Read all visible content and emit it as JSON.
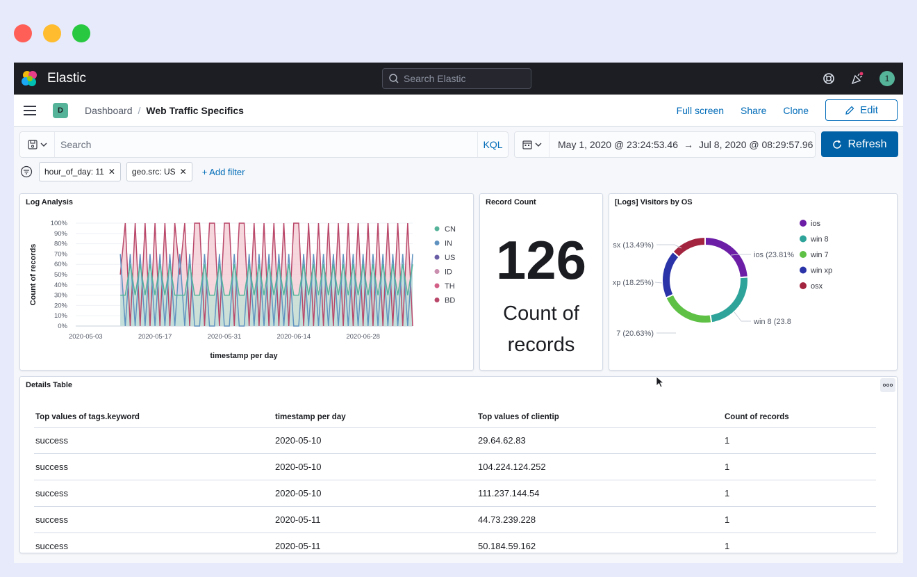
{
  "window": {
    "controls": {
      "close_color": "#ff5f57",
      "minimize_color": "#febc2e",
      "maximize_color": "#28c840"
    }
  },
  "header": {
    "brand": "Elastic",
    "search_placeholder": "Search Elastic",
    "avatar_initial": "1"
  },
  "subbar": {
    "space_badge": "D",
    "breadcrumbs": [
      "Dashboard",
      "Web Traffic Specifics"
    ],
    "actions": {
      "full_screen": "Full screen",
      "share": "Share",
      "clone": "Clone",
      "edit": "Edit"
    }
  },
  "query": {
    "search_placeholder": "Search",
    "language": "KQL",
    "date_start": "May 1, 2020 @ 23:24:53.46",
    "date_arrow": "→",
    "date_end": "Jul 8, 2020 @ 08:29:57.96",
    "refresh": "Refresh"
  },
  "filters": {
    "pills": [
      "hour_of_day: 11",
      "geo.src: US"
    ],
    "add_filter": "+ Add filter"
  },
  "panels": {
    "log_analysis": {
      "title": "Log Analysis"
    },
    "record_count": {
      "title": "Record Count",
      "value": "126",
      "caption_line1": "Count of",
      "caption_line2": "records"
    },
    "visitors_os": {
      "title": "[Logs] Visitors by OS"
    },
    "details_table": {
      "title": "Details Table",
      "columns": [
        "Top values of tags.keyword",
        "timestamp per day",
        "Top values of clientip",
        "Count of records"
      ],
      "rows": [
        [
          "success",
          "2020-05-10",
          "29.64.62.83",
          "1"
        ],
        [
          "success",
          "2020-05-10",
          "104.224.124.252",
          "1"
        ],
        [
          "success",
          "2020-05-10",
          "111.237.144.54",
          "1"
        ],
        [
          "success",
          "2020-05-11",
          "44.73.239.228",
          "1"
        ],
        [
          "success",
          "2020-05-11",
          "50.184.59.162",
          "1"
        ]
      ]
    }
  },
  "chart_data": [
    {
      "type": "area",
      "title": "Log Analysis",
      "xlabel": "timestamp per day",
      "ylabel": "Count of records",
      "yticks": [
        "100%",
        "90%",
        "80%",
        "70%",
        "60%",
        "50%",
        "40%",
        "30%",
        "20%",
        "10%",
        "0%"
      ],
      "xticks": [
        "2020-05-03",
        "2020-05-17",
        "2020-05-31",
        "2020-06-14",
        "2020-06-28"
      ],
      "ylim": [
        0,
        100
      ],
      "legend_position": "right",
      "series": [
        {
          "name": "CN",
          "color": "#54b399"
        },
        {
          "name": "IN",
          "color": "#6092c0"
        },
        {
          "name": "US",
          "color": "#6a5fa6"
        },
        {
          "name": "ID",
          "color": "#ca8eae"
        },
        {
          "name": "TH",
          "color": "#d36086"
        },
        {
          "name": "BD",
          "color": "#b9476a"
        }
      ],
      "x": [
        "2020-05-01",
        "2020-05-02",
        "2020-05-03",
        "2020-05-04",
        "2020-05-05",
        "2020-05-06",
        "2020-05-07",
        "2020-05-08",
        "2020-05-09",
        "2020-05-10",
        "2020-05-11",
        "2020-05-12",
        "2020-05-13",
        "2020-05-14",
        "2020-05-15",
        "2020-05-16",
        "2020-05-17",
        "2020-05-18",
        "2020-05-19",
        "2020-05-20",
        "2020-05-21",
        "2020-05-22",
        "2020-05-23",
        "2020-05-24",
        "2020-05-25",
        "2020-05-26",
        "2020-05-27",
        "2020-05-28",
        "2020-05-29",
        "2020-05-30",
        "2020-05-31",
        "2020-06-01",
        "2020-06-02",
        "2020-06-03",
        "2020-06-04",
        "2020-06-05",
        "2020-06-06",
        "2020-06-07",
        "2020-06-08",
        "2020-06-09",
        "2020-06-10",
        "2020-06-11",
        "2020-06-12",
        "2020-06-13",
        "2020-06-14",
        "2020-06-15",
        "2020-06-16",
        "2020-06-17",
        "2020-06-18",
        "2020-06-19",
        "2020-06-20",
        "2020-06-21",
        "2020-06-22",
        "2020-06-23",
        "2020-06-24",
        "2020-06-25",
        "2020-06-26",
        "2020-06-27",
        "2020-06-28",
        "2020-06-29",
        "2020-06-30",
        "2020-07-01",
        "2020-07-02",
        "2020-07-03",
        "2020-07-04",
        "2020-07-05",
        "2020-07-06",
        "2020-07-07",
        "2020-07-08"
      ],
      "dominant_pct": [
        null,
        null,
        null,
        null,
        null,
        null,
        null,
        null,
        null,
        50,
        100,
        0,
        100,
        0,
        100,
        0,
        100,
        0,
        100,
        0,
        100,
        50,
        100,
        0,
        100,
        100,
        0,
        100,
        100,
        0,
        100,
        100,
        0,
        100,
        100,
        0,
        100,
        0,
        100,
        0,
        100,
        0,
        100,
        0,
        100,
        100,
        0,
        100,
        0,
        100,
        0,
        100,
        0,
        100,
        0,
        100,
        0,
        100,
        0,
        100,
        0,
        100,
        0,
        100,
        0,
        100,
        0,
        100,
        0
      ]
    },
    {
      "type": "pie",
      "title": "[Logs] Visitors by OS",
      "legend_position": "right",
      "slices": [
        {
          "label": "ios",
          "value": 23.81,
          "color": "#6c1ea6",
          "callout": "ios (23.81%"
        },
        {
          "label": "win 8",
          "value": 23.81,
          "color": "#2ea39a",
          "callout": "win 8 (23.8"
        },
        {
          "label": "win 7",
          "value": 20.63,
          "color": "#5ec045",
          "callout": "7 (20.63%)"
        },
        {
          "label": "win xp",
          "value": 18.25,
          "color": "#2a33a8",
          "callout": "xp (18.25%)"
        },
        {
          "label": "osx",
          "value": 13.49,
          "color": "#a3243f",
          "callout": "sx (13.49%)"
        }
      ]
    }
  ]
}
